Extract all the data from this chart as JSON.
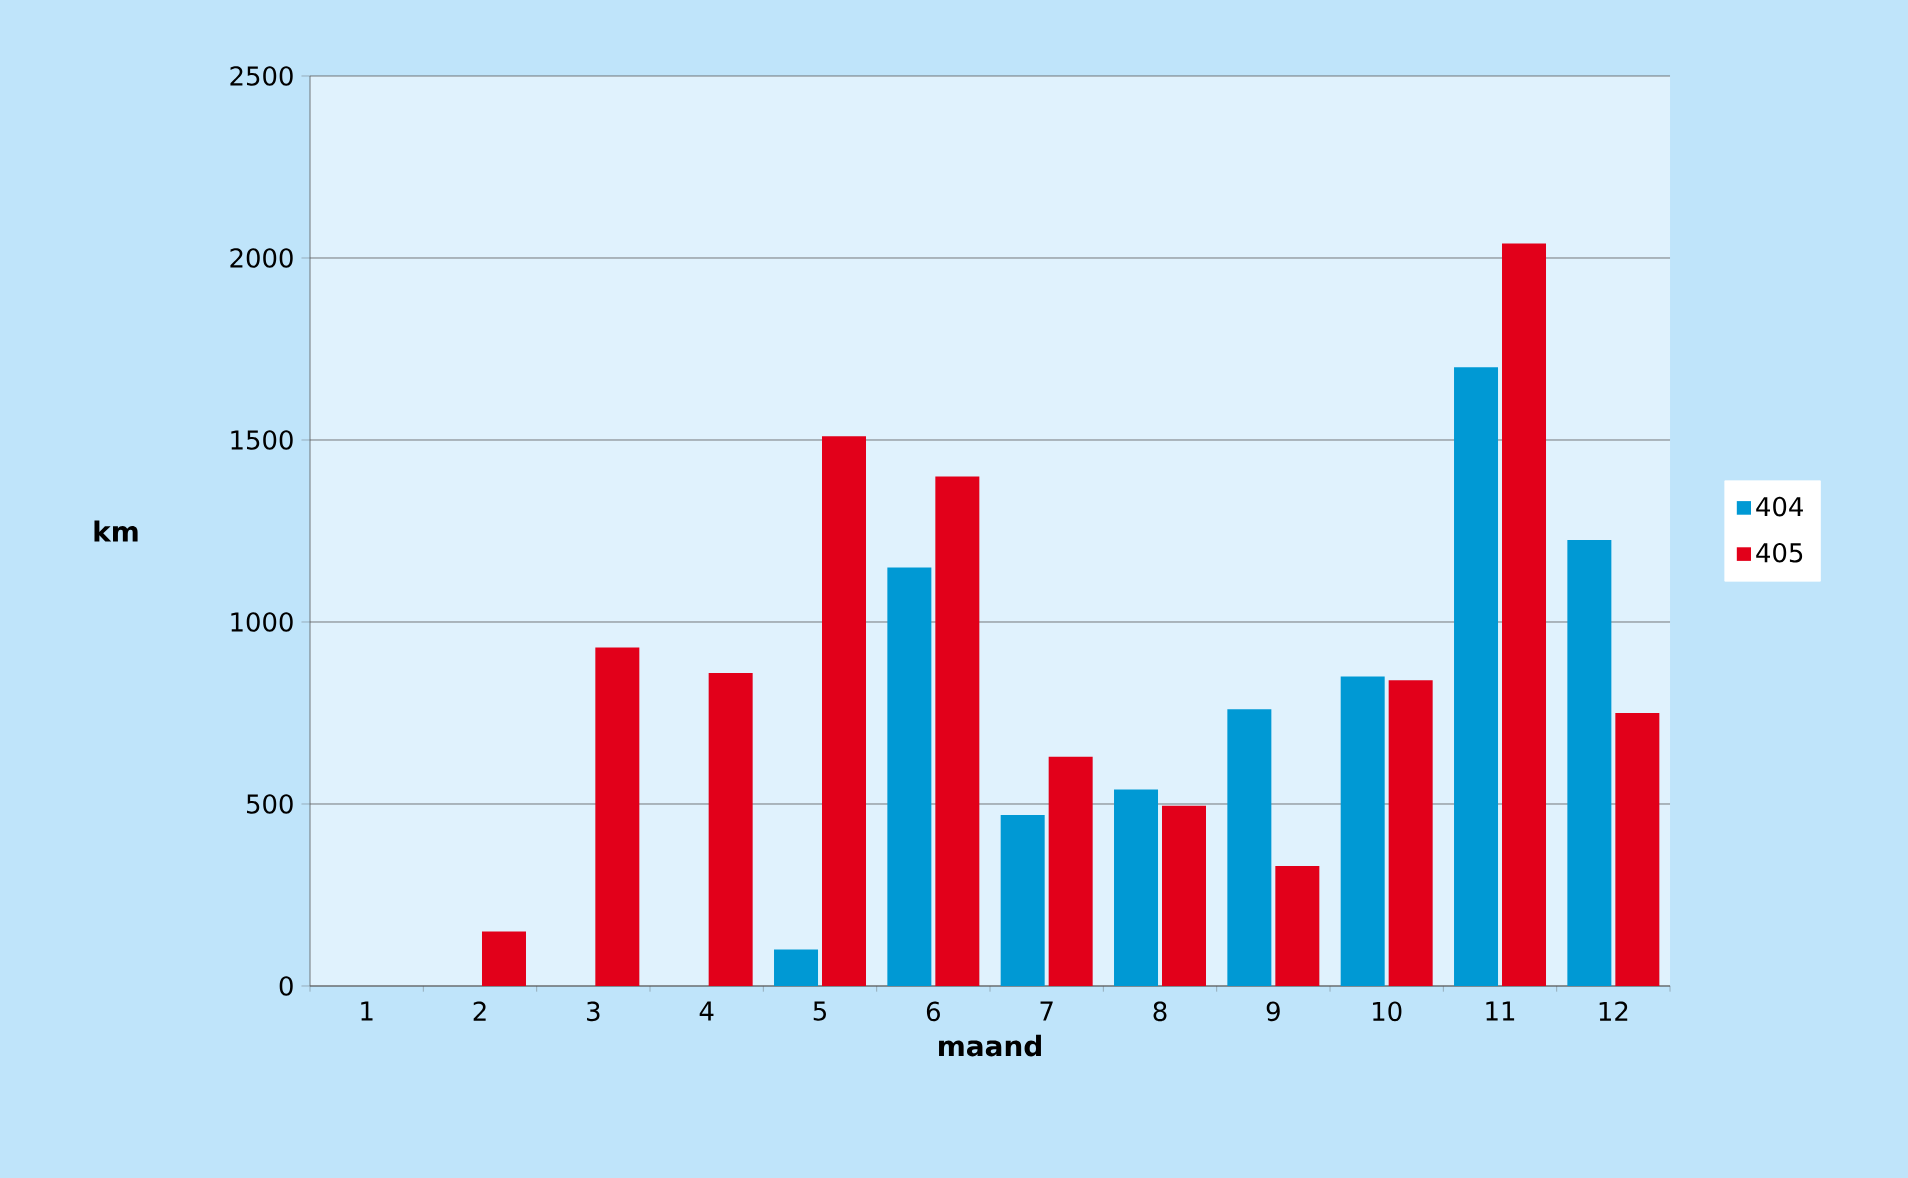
{
  "chart_data": {
    "type": "bar",
    "xlabel": "maand",
    "ylabel": "km",
    "categories": [
      "1",
      "2",
      "3",
      "4",
      "5",
      "6",
      "7",
      "8",
      "9",
      "10",
      "11",
      "12"
    ],
    "series": [
      {
        "name": "404",
        "color": "#0099d4",
        "values": [
          0,
          0,
          0,
          0,
          100,
          1150,
          470,
          540,
          760,
          850,
          1700,
          1225
        ]
      },
      {
        "name": "405",
        "color": "#e2001a",
        "values": [
          0,
          150,
          930,
          860,
          1510,
          1400,
          630,
          495,
          330,
          840,
          2040,
          750
        ]
      }
    ],
    "ylim": [
      0,
      2500
    ],
    "yticks": [
      0,
      500,
      1000,
      1500,
      2000,
      2500
    ],
    "grid": "y",
    "legend": "right"
  }
}
